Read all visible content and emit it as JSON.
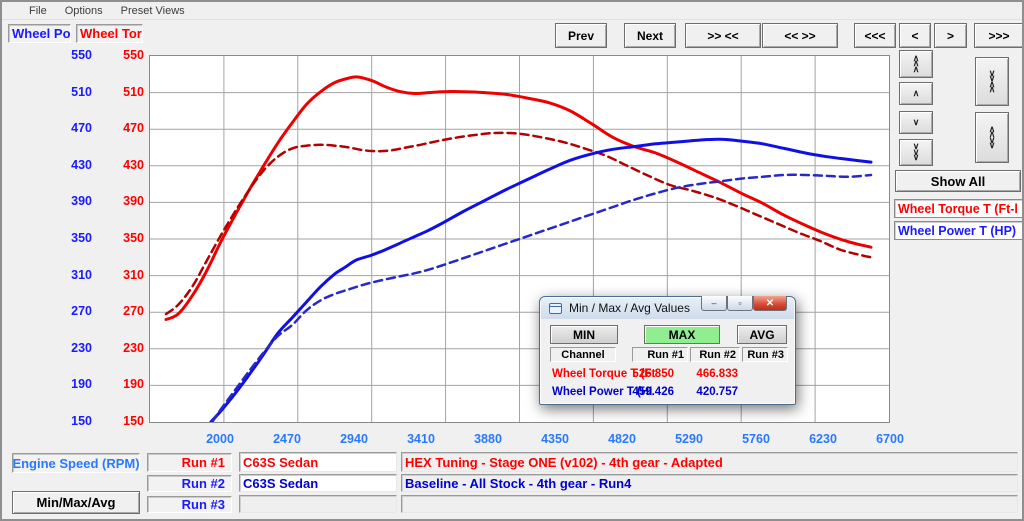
{
  "menu": {
    "items": [
      {
        "label": "File"
      },
      {
        "label": "Options"
      },
      {
        "label": "Preset Views"
      }
    ]
  },
  "axis_headers": {
    "power_label": "Wheel Pow",
    "torque_label": "Wheel Torq",
    "power_color": "#1a1aff",
    "torque_color": "#ff0000"
  },
  "toolbar": {
    "prev": "Prev",
    "next": "Next",
    "converge": ">> <<",
    "diverge": "<< >>",
    "fast_left": "<<<",
    "left": "<",
    "right": ">",
    "fast_right": ">>>"
  },
  "side_panel": {
    "show_all": "Show All",
    "spinners": [
      {
        "name": "y-zoom-in-fast",
        "glyph": "∧\n∧\n∧"
      },
      {
        "name": "y-shift-up",
        "glyph": "∧"
      },
      {
        "name": "y-shift-down",
        "glyph": "∨"
      },
      {
        "name": "y-zoom-out-fast",
        "glyph": "∨\n∨\n∨"
      },
      {
        "name": "y-scale-converge",
        "glyph": "∨\n∨\n∧\n∧"
      },
      {
        "name": "y-scale-diverge",
        "glyph": "∧\n∧\n∨\n∨"
      }
    ],
    "legend": [
      {
        "label": "Wheel Torque T (Ft-l",
        "color": "#ff0000"
      },
      {
        "label": "Wheel Power T (HP)",
        "color": "#1a1aff"
      }
    ]
  },
  "minmax_window": {
    "title": "Min / Max / Avg Values",
    "min_label": "MIN",
    "max_label": "MAX",
    "avg_label": "AVG",
    "active_mode": "MAX",
    "active_color": "#90ee90",
    "columns": {
      "channel": "Channel",
      "run1": "Run #1",
      "run2": "Run #2",
      "run3": "Run #3"
    },
    "rows": [
      {
        "channel": "Wheel Torque T (Ft",
        "run1": "526.850",
        "run2": "466.833",
        "run3": "",
        "color": "#ff0000"
      },
      {
        "channel": "Wheel Power T (HI",
        "run1": "459.426",
        "run2": "420.757",
        "run3": "",
        "color": "#0000cc"
      }
    ],
    "controls": {
      "minimize": "–",
      "maximize": "▫",
      "close": "✕"
    }
  },
  "bottom": {
    "x_axis_label": "Engine Speed (RPM)",
    "x_axis_color": "#2979ff",
    "minmax_button": "Min/Max/Avg",
    "runs": [
      {
        "label": "Run #1",
        "name": "C63S Sedan",
        "desc": "HEX Tuning - Stage ONE (v102) - 4th gear - Adapted",
        "color": "#ff0000"
      },
      {
        "label": "Run #2",
        "name": "C63S Sedan",
        "desc": "Baseline - All Stock - 4th gear - Run4",
        "color": "#0000d0"
      },
      {
        "label": "Run #3",
        "name": "",
        "desc": "",
        "color": "#1a1aff"
      }
    ]
  },
  "chart_data": {
    "type": "line",
    "xlabel": "Engine Speed (RPM)",
    "ylabel_left": "Wheel Power T (HP)",
    "ylabel_right": "Wheel Torque T (Ft-lb)",
    "xlim": [
      1503,
      6686
    ],
    "ylim": [
      150,
      550
    ],
    "x_ticks": [
      2000,
      2470,
      2940,
      3410,
      3880,
      4350,
      4820,
      5290,
      5760,
      6230,
      6700
    ],
    "y_ticks": [
      550,
      510,
      470,
      430,
      390,
      350,
      310,
      270,
      230,
      190,
      150
    ],
    "x_tick_color": "#2979ff",
    "grid": true,
    "grid_color": "#a3a3a3",
    "series": [
      {
        "name": "Wheel Torque Run #1",
        "color": "#ee0000",
        "dash": false,
        "width": 3,
        "points": [
          [
            1615,
            262
          ],
          [
            1700,
            268
          ],
          [
            1800,
            288
          ],
          [
            1900,
            315
          ],
          [
            2000,
            347
          ],
          [
            2100,
            376
          ],
          [
            2200,
            404
          ],
          [
            2300,
            430
          ],
          [
            2400,
            455
          ],
          [
            2500,
            477
          ],
          [
            2600,
            497
          ],
          [
            2700,
            511
          ],
          [
            2800,
            521
          ],
          [
            2900,
            526
          ],
          [
            2960,
            527
          ],
          [
            3060,
            523
          ],
          [
            3160,
            516
          ],
          [
            3260,
            511
          ],
          [
            3360,
            509
          ],
          [
            3460,
            510
          ],
          [
            3560,
            511
          ],
          [
            3700,
            511
          ],
          [
            3850,
            510
          ],
          [
            4000,
            508
          ],
          [
            4150,
            504
          ],
          [
            4300,
            499
          ],
          [
            4450,
            490
          ],
          [
            4600,
            476
          ],
          [
            4750,
            461
          ],
          [
            4900,
            451
          ],
          [
            5050,
            444
          ],
          [
            5200,
            434
          ],
          [
            5350,
            423
          ],
          [
            5500,
            412
          ],
          [
            5650,
            400
          ],
          [
            5800,
            389
          ],
          [
            5950,
            376
          ],
          [
            6100,
            365
          ],
          [
            6250,
            355
          ],
          [
            6400,
            347
          ],
          [
            6560,
            341
          ]
        ]
      },
      {
        "name": "Wheel Torque Run #2",
        "color": "#b40000",
        "dash": true,
        "width": 2.5,
        "points": [
          [
            1615,
            268
          ],
          [
            1700,
            278
          ],
          [
            1800,
            298
          ],
          [
            1900,
            326
          ],
          [
            2000,
            354
          ],
          [
            2100,
            380
          ],
          [
            2200,
            404
          ],
          [
            2300,
            425
          ],
          [
            2400,
            440
          ],
          [
            2500,
            449
          ],
          [
            2600,
            452
          ],
          [
            2700,
            453
          ],
          [
            2800,
            452
          ],
          [
            2900,
            450
          ],
          [
            3000,
            447
          ],
          [
            3100,
            446
          ],
          [
            3200,
            447
          ],
          [
            3300,
            450
          ],
          [
            3400,
            453
          ],
          [
            3550,
            458
          ],
          [
            3700,
            462
          ],
          [
            3850,
            465
          ],
          [
            3950,
            466
          ],
          [
            4100,
            465
          ],
          [
            4250,
            461
          ],
          [
            4400,
            456
          ],
          [
            4550,
            449
          ],
          [
            4700,
            441
          ],
          [
            4850,
            430
          ],
          [
            5000,
            419
          ],
          [
            5150,
            409
          ],
          [
            5300,
            403
          ],
          [
            5450,
            396
          ],
          [
            5600,
            387
          ],
          [
            5750,
            377
          ],
          [
            5900,
            367
          ],
          [
            6050,
            357
          ],
          [
            6200,
            348
          ],
          [
            6350,
            338
          ],
          [
            6500,
            332
          ],
          [
            6560,
            330
          ]
        ]
      },
      {
        "name": "Wheel Power Run #1",
        "color": "#0f0fe6",
        "dash": false,
        "width": 3,
        "points": [
          [
            1930,
            150
          ],
          [
            2000,
            162
          ],
          [
            2100,
            181
          ],
          [
            2200,
            202
          ],
          [
            2300,
            224
          ],
          [
            2400,
            247
          ],
          [
            2500,
            264
          ],
          [
            2600,
            281
          ],
          [
            2700,
            298
          ],
          [
            2800,
            312
          ],
          [
            2870,
            319
          ],
          [
            2950,
            327
          ],
          [
            3050,
            332
          ],
          [
            3150,
            338
          ],
          [
            3250,
            345
          ],
          [
            3350,
            352
          ],
          [
            3450,
            359
          ],
          [
            3550,
            367
          ],
          [
            3700,
            380
          ],
          [
            3850,
            392
          ],
          [
            4000,
            404
          ],
          [
            4150,
            415
          ],
          [
            4300,
            426
          ],
          [
            4450,
            436
          ],
          [
            4600,
            443
          ],
          [
            4750,
            448
          ],
          [
            4900,
            451
          ],
          [
            5050,
            454
          ],
          [
            5200,
            456
          ],
          [
            5350,
            458
          ],
          [
            5500,
            459
          ],
          [
            5650,
            457
          ],
          [
            5800,
            454
          ],
          [
            5950,
            449
          ],
          [
            6100,
            444
          ],
          [
            6250,
            440
          ],
          [
            6400,
            437
          ],
          [
            6560,
            434
          ]
        ]
      },
      {
        "name": "Wheel Power Run #2",
        "color": "#2828c8",
        "dash": true,
        "width": 2.5,
        "points": [
          [
            1940,
            150
          ],
          [
            2000,
            164
          ],
          [
            2100,
            185
          ],
          [
            2200,
            206
          ],
          [
            2300,
            226
          ],
          [
            2400,
            244
          ],
          [
            2500,
            256
          ],
          [
            2600,
            272
          ],
          [
            2700,
            283
          ],
          [
            2800,
            290
          ],
          [
            2900,
            295
          ],
          [
            3000,
            300
          ],
          [
            3100,
            304
          ],
          [
            3250,
            309
          ],
          [
            3400,
            314
          ],
          [
            3550,
            321
          ],
          [
            3700,
            329
          ],
          [
            3850,
            337
          ],
          [
            4000,
            345
          ],
          [
            4150,
            353
          ],
          [
            4300,
            361
          ],
          [
            4450,
            369
          ],
          [
            4600,
            377
          ],
          [
            4750,
            385
          ],
          [
            4900,
            393
          ],
          [
            5050,
            400
          ],
          [
            5200,
            406
          ],
          [
            5350,
            410
          ],
          [
            5500,
            413
          ],
          [
            5650,
            416
          ],
          [
            5800,
            418
          ],
          [
            5950,
            420
          ],
          [
            6100,
            420
          ],
          [
            6250,
            419
          ],
          [
            6400,
            418
          ],
          [
            6560,
            420
          ]
        ]
      }
    ],
    "max_values": {
      "torque_run1": 526.85,
      "torque_run2": 466.833,
      "power_run1": 459.426,
      "power_run2": 420.757
    }
  }
}
